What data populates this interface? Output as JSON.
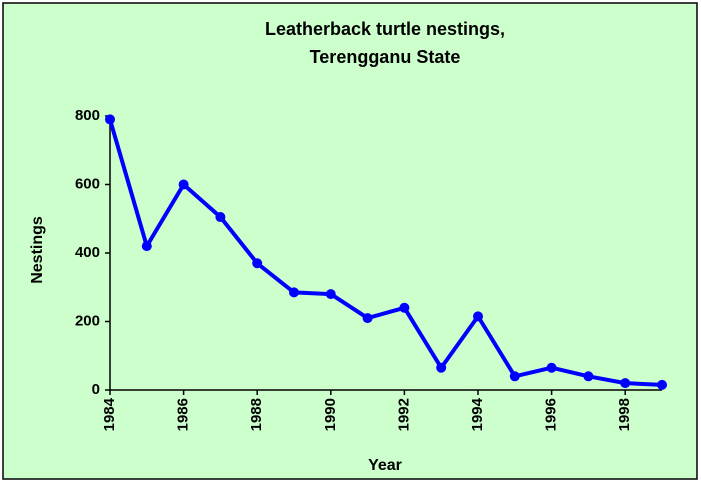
{
  "chart_data": {
    "type": "line",
    "title": "Leatherback turtle nestings,",
    "subtitle": "Terengganu State",
    "x_label": "Year",
    "y_label": "Nestings",
    "x": [
      1984,
      1985,
      1986,
      1987,
      1988,
      1989,
      1990,
      1991,
      1992,
      1993,
      1994,
      1995,
      1996,
      1997,
      1998,
      1999
    ],
    "values": [
      790,
      420,
      600,
      505,
      370,
      285,
      280,
      210,
      240,
      65,
      215,
      40,
      65,
      40,
      20,
      15
    ],
    "color": "#0000ff",
    "xlim": [
      1984,
      1999
    ],
    "xticks": [
      1984,
      1986,
      1988,
      1990,
      1992,
      1994,
      1996,
      1998
    ],
    "ylim": [
      0,
      800
    ],
    "yticks": [
      0,
      200,
      400,
      600,
      800
    ],
    "grid": false
  }
}
